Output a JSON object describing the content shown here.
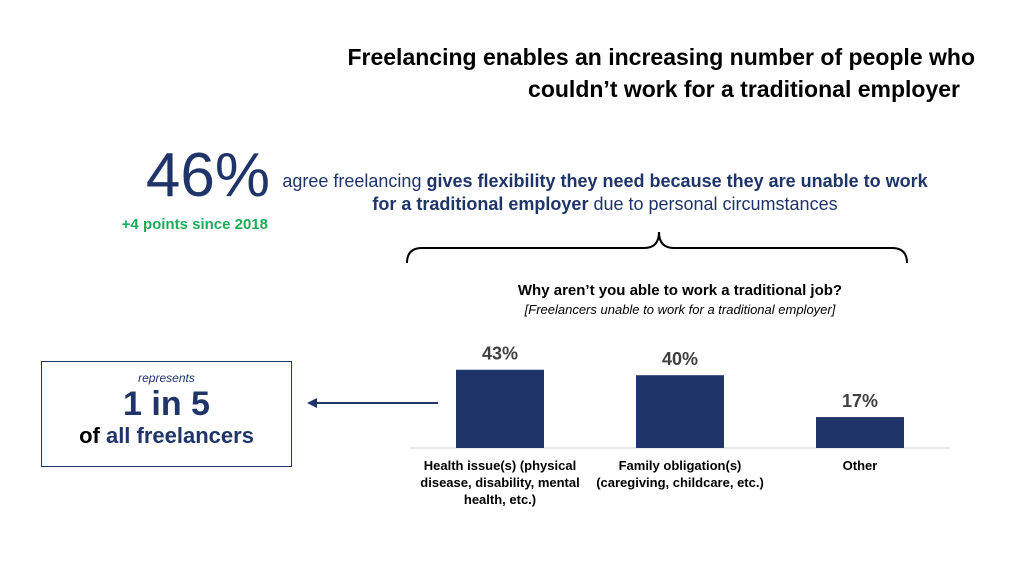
{
  "slide": {
    "title_lines": [
      "Freelancing enables an increasing number of people who",
      "couldn’t work for a traditional employer"
    ],
    "stat": "46%",
    "stat_change": "+4 points since 2018",
    "statement_parts": [
      "agree freelancing ",
      "gives flexibility they need because they are unable to work for a traditional employer",
      " due to personal circumstances"
    ],
    "box": {
      "top": "represents",
      "middle": "1 in 5",
      "bottom_plain": "of ",
      "bottom_bold": "all freelancers"
    }
  },
  "chart_data": {
    "type": "bar",
    "title": "Why aren’t you able to work a traditional job?",
    "subtitle": "[Freelancers unable to work for a traditional employer]",
    "categories": [
      "Health issue(s) (physical disease, disability, mental health, etc.)",
      "Family obligation(s) (caregiving, childcare, etc.)",
      "Other"
    ],
    "values": [
      43,
      40,
      17
    ],
    "value_labels": [
      "43%",
      "40%",
      "17%"
    ],
    "color": "#1f3468"
  }
}
